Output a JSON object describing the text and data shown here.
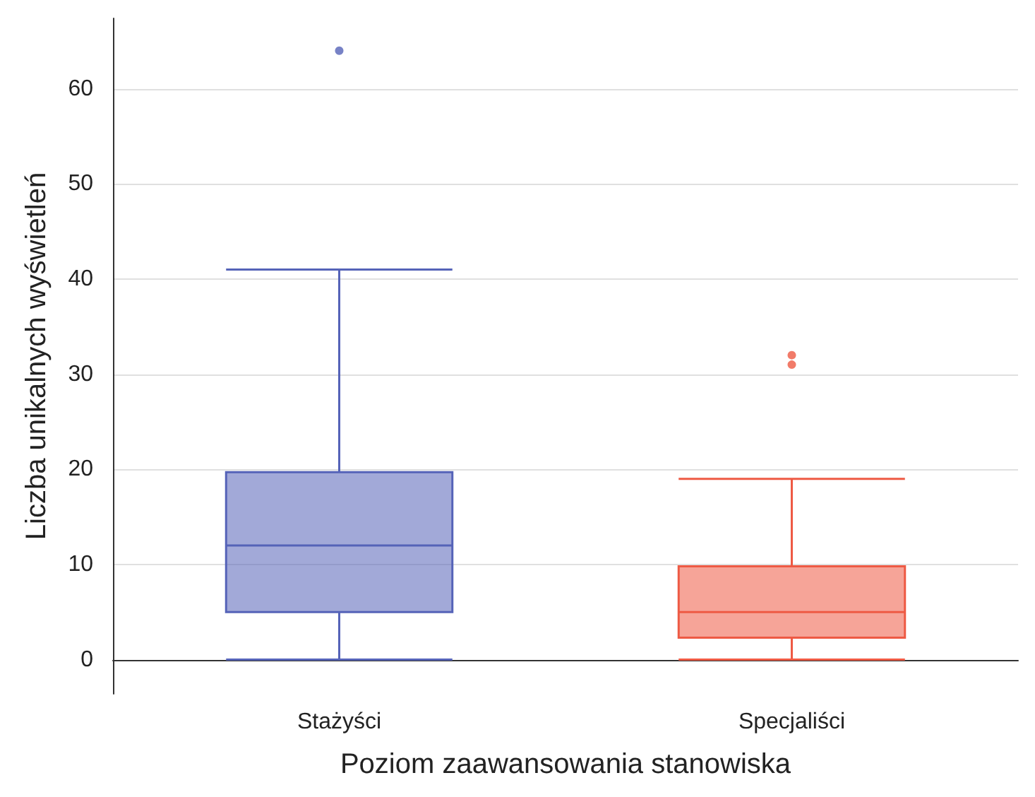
{
  "chart_data": {
    "type": "box",
    "xlabel": "Poziom zaawansowania stanowiska",
    "ylabel": "Liczba unikalnych wyświetleń",
    "categories": [
      "Stażyści",
      "Specjaliści"
    ],
    "boxes": [
      {
        "low": 0,
        "q1": 5,
        "median": 12,
        "q3": 19.7,
        "high": 41,
        "outliers": [
          64
        ]
      },
      {
        "low": 0,
        "q1": 2.3,
        "median": 5,
        "q3": 9.8,
        "high": 19,
        "outliers": [
          31,
          32
        ]
      }
    ],
    "colors": [
      "#5563b8",
      "#ee5a44"
    ],
    "ylim": [
      -3.6,
      67.4
    ],
    "yticks": [
      0,
      10,
      20,
      30,
      40,
      50,
      60
    ],
    "grid": "y"
  }
}
